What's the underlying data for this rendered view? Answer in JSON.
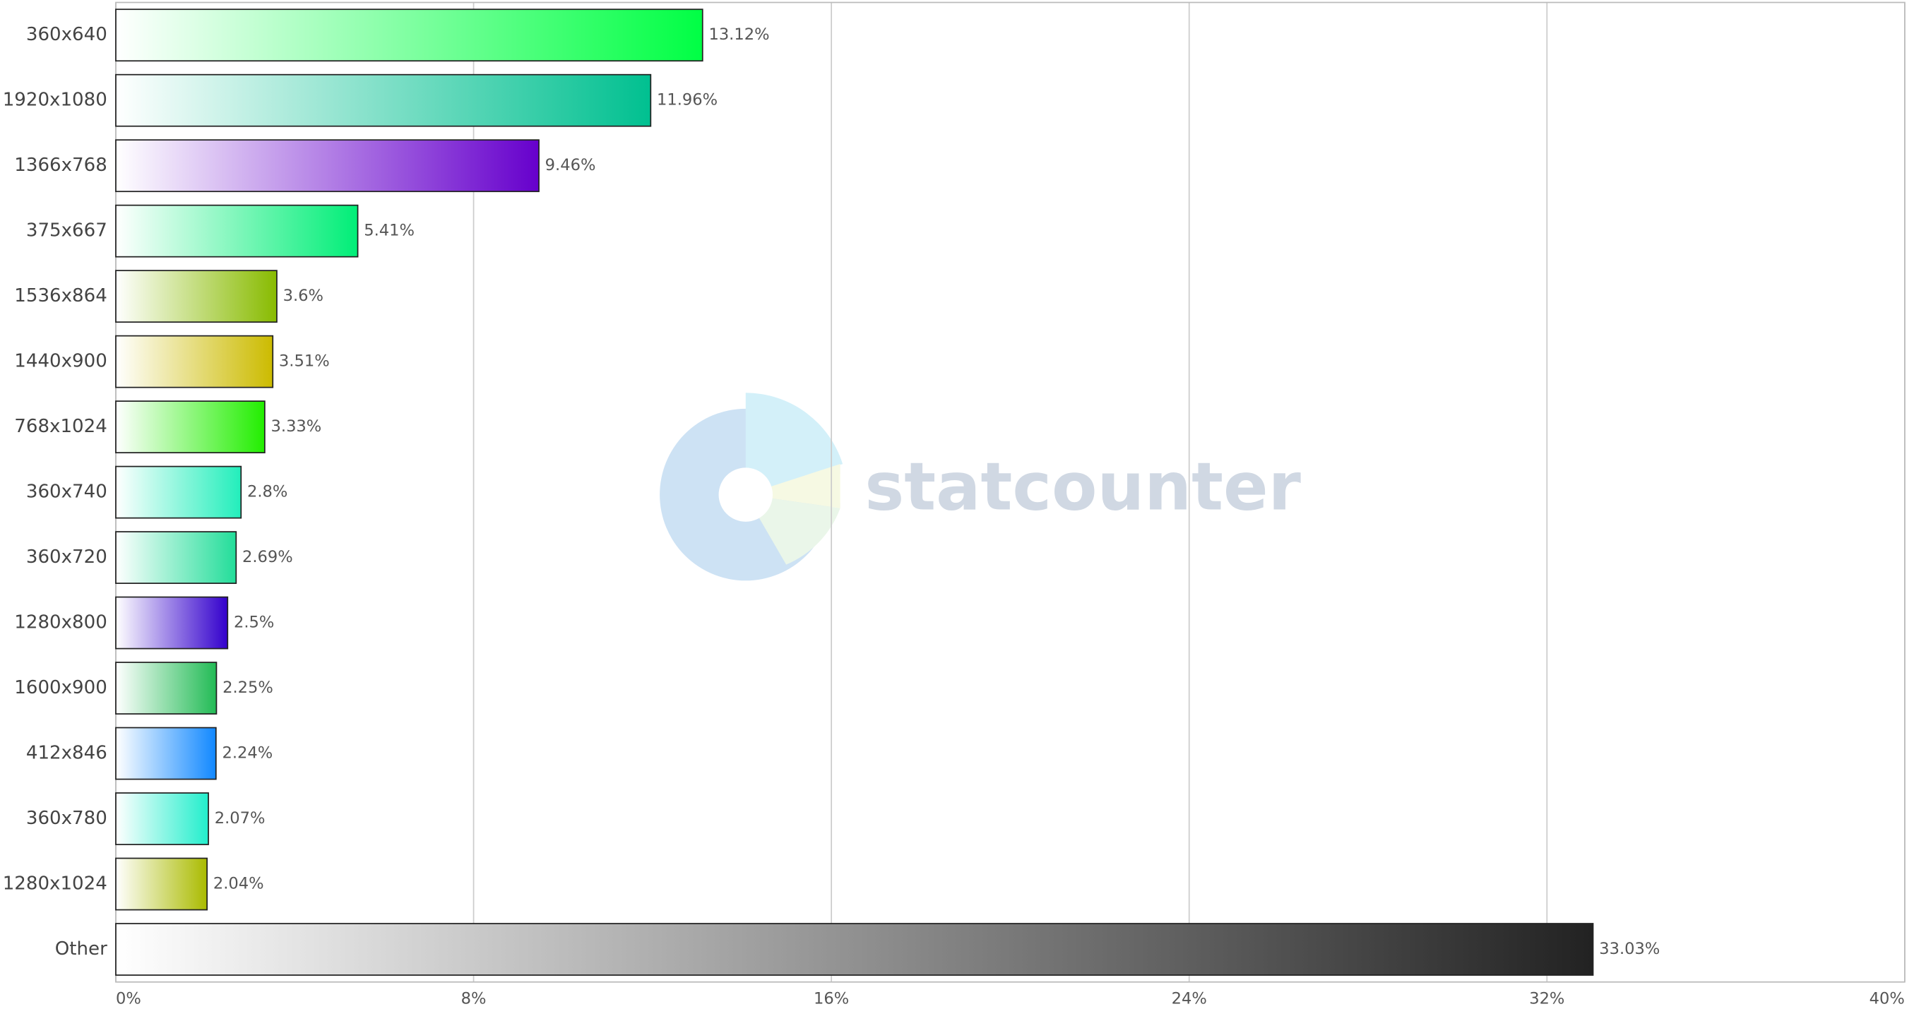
{
  "chart_data": {
    "type": "bar",
    "orientation": "horizontal",
    "watermark": "statcounter",
    "categories": [
      "360x640",
      "1920x1080",
      "1366x768",
      "375x667",
      "1536x864",
      "1440x900",
      "768x1024",
      "360x740",
      "360x720",
      "1280x800",
      "1600x900",
      "412x846",
      "360x780",
      "1280x1024",
      "Other"
    ],
    "values": [
      13.12,
      11.96,
      9.46,
      5.41,
      3.6,
      3.51,
      3.33,
      2.8,
      2.69,
      2.5,
      2.25,
      2.24,
      2.07,
      2.04,
      33.03
    ],
    "value_labels": [
      "13.12%",
      "11.96%",
      "9.46%",
      "5.41%",
      "3.6%",
      "3.51%",
      "3.33%",
      "2.8%",
      "2.69%",
      "2.5%",
      "2.25%",
      "2.24%",
      "2.07%",
      "2.04%",
      "33.03%"
    ],
    "colors": [
      "#00ff44",
      "#00c090",
      "#6600cc",
      "#00ee77",
      "#88bb00",
      "#ccbb00",
      "#22ee00",
      "#22eebb",
      "#22dd99",
      "#3300cc",
      "#22bb55",
      "#1188ff",
      "#22eecc",
      "#aabb00",
      "#222222"
    ],
    "xlim": [
      0,
      40
    ],
    "xticks": [
      {
        "value": 0,
        "label": "0%"
      },
      {
        "value": 8,
        "label": "8%"
      },
      {
        "value": 16,
        "label": "16%"
      },
      {
        "value": 24,
        "label": "24%"
      },
      {
        "value": 32,
        "label": "32%"
      },
      {
        "value": 40,
        "label": "40%"
      }
    ],
    "grid": true
  }
}
